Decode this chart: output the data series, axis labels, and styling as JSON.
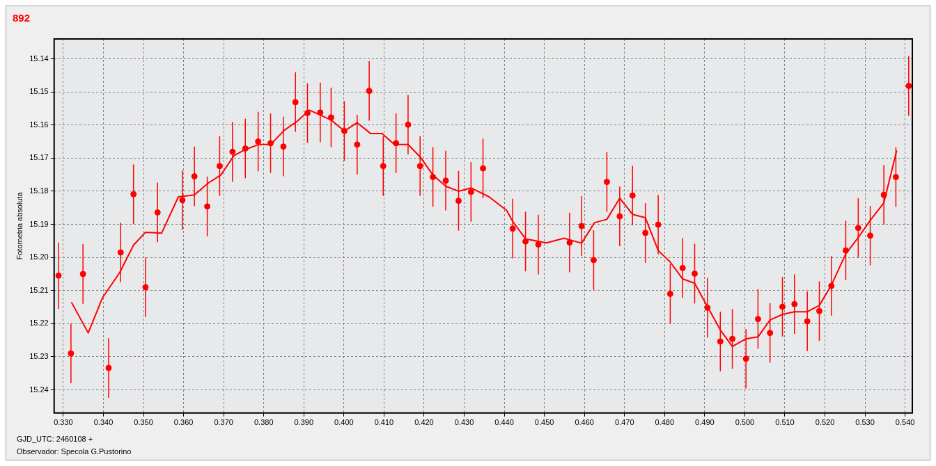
{
  "chart_data": {
    "type": "scatter",
    "title": "892",
    "ylabel": "Fotometria absoluta",
    "annotations": [
      "GJD_UTC: 2460108 +",
      "Observador: Specola G.Pustorino"
    ],
    "xlim": [
      0.3277,
      0.5418
    ],
    "ylim": [
      15.247,
      15.134
    ],
    "xticks": [
      {
        "value": 0.33,
        "label": "0.330"
      },
      {
        "value": 0.34,
        "label": "0.340"
      },
      {
        "value": 0.35,
        "label": "0.350"
      },
      {
        "value": 0.36,
        "label": "0.360"
      },
      {
        "value": 0.37,
        "label": "0.370"
      },
      {
        "value": 0.38,
        "label": "0.380"
      },
      {
        "value": 0.39,
        "label": "0.390"
      },
      {
        "value": 0.4,
        "label": "0.400"
      },
      {
        "value": 0.41,
        "label": "0.410"
      },
      {
        "value": 0.42,
        "label": "0.420"
      },
      {
        "value": 0.43,
        "label": "0.430"
      },
      {
        "value": 0.44,
        "label": "0.440"
      },
      {
        "value": 0.45,
        "label": "0.450"
      },
      {
        "value": 0.46,
        "label": "0.460"
      },
      {
        "value": 0.47,
        "label": "0.470"
      },
      {
        "value": 0.48,
        "label": "0.480"
      },
      {
        "value": 0.49,
        "label": "0.490"
      },
      {
        "value": 0.5,
        "label": "0.500"
      },
      {
        "value": 0.51,
        "label": "0.510"
      },
      {
        "value": 0.52,
        "label": "0.520"
      },
      {
        "value": 0.53,
        "label": "0.530"
      },
      {
        "value": 0.54,
        "label": "0.540"
      }
    ],
    "yticks": [
      {
        "value": 15.14,
        "label": "15.14"
      },
      {
        "value": 15.15,
        "label": "15.15"
      },
      {
        "value": 15.16,
        "label": "15.16"
      },
      {
        "value": 15.17,
        "label": "15.17"
      },
      {
        "value": 15.18,
        "label": "15.18"
      },
      {
        "value": 15.19,
        "label": "15.19"
      },
      {
        "value": 15.2,
        "label": "15.20"
      },
      {
        "value": 15.21,
        "label": "15.21"
      },
      {
        "value": 15.22,
        "label": "15.22"
      },
      {
        "value": 15.23,
        "label": "15.23"
      },
      {
        "value": 15.24,
        "label": "15.24"
      }
    ],
    "grid": true,
    "marker": "circle",
    "series": [
      {
        "color": "#ff0000",
        "x": [
          0.3288,
          0.3319,
          0.3349,
          0.3413,
          0.3443,
          0.3475,
          0.3505,
          0.3535,
          0.3597,
          0.3627,
          0.3659,
          0.369,
          0.3722,
          0.3754,
          0.3786,
          0.3817,
          0.3849,
          0.3879,
          0.3909,
          0.3941,
          0.3968,
          0.4001,
          0.4033,
          0.4063,
          0.4098,
          0.413,
          0.416,
          0.419,
          0.4222,
          0.4254,
          0.4286,
          0.4317,
          0.4347,
          0.4421,
          0.4453,
          0.4485,
          0.4563,
          0.4593,
          0.4623,
          0.4656,
          0.4688,
          0.472,
          0.4752,
          0.4784,
          0.4814,
          0.4845,
          0.4875,
          0.4907,
          0.4939,
          0.4969,
          0.5003,
          0.5033,
          0.5063,
          0.5094,
          0.5124,
          0.5156,
          0.5186,
          0.5216,
          0.5252,
          0.5283,
          0.5313,
          0.5347,
          0.5377,
          0.5409
        ],
        "values": [
          15.2055,
          15.229,
          15.205,
          15.2334,
          15.1985,
          15.1809,
          15.209,
          15.1864,
          15.1827,
          15.1755,
          15.1846,
          15.1724,
          15.1681,
          15.1671,
          15.165,
          15.1655,
          15.1665,
          15.1531,
          15.1564,
          15.1562,
          15.1577,
          15.1618,
          15.1659,
          15.1497,
          15.1724,
          15.1655,
          15.1599,
          15.1724,
          15.1757,
          15.1768,
          15.1829,
          15.1802,
          15.1731,
          15.1913,
          15.1952,
          15.1961,
          15.1955,
          15.1905,
          15.2008,
          15.1772,
          15.1876,
          15.1813,
          15.1926,
          15.1901,
          15.211,
          15.2032,
          15.2049,
          15.2152,
          15.2254,
          15.2246,
          15.2306,
          15.2186,
          15.2228,
          15.2149,
          15.2141,
          15.2193,
          15.2162,
          15.2086,
          15.1979,
          15.1911,
          15.1934,
          15.1811,
          15.1757,
          15.1482
        ],
        "errors": [
          0.01,
          0.009,
          0.009,
          0.009,
          0.009,
          0.009,
          0.009,
          0.009,
          0.009,
          0.009,
          0.009,
          0.009,
          0.009,
          0.009,
          0.009,
          0.009,
          0.009,
          0.009,
          0.009,
          0.009,
          0.009,
          0.009,
          0.009,
          0.009,
          0.009,
          0.009,
          0.009,
          0.009,
          0.009,
          0.009,
          0.009,
          0.009,
          0.009,
          0.009,
          0.009,
          0.009,
          0.009,
          0.009,
          0.009,
          0.009,
          0.009,
          0.009,
          0.009,
          0.009,
          0.009,
          0.009,
          0.009,
          0.009,
          0.009,
          0.009,
          0.009,
          0.009,
          0.009,
          0.009,
          0.009,
          0.009,
          0.009,
          0.009,
          0.009,
          0.009,
          0.009,
          0.009,
          0.009,
          0.009
        ]
      },
      {
        "type": "line",
        "color": "#ff0000",
        "marker": "none",
        "x": [
          0.332,
          0.3362,
          0.3398,
          0.3441,
          0.3475,
          0.3505,
          0.3545,
          0.3587,
          0.3627,
          0.3662,
          0.3693,
          0.3726,
          0.3756,
          0.3787,
          0.3817,
          0.3851,
          0.3883,
          0.3914,
          0.3941,
          0.3968,
          0.4001,
          0.4033,
          0.4067,
          0.4095,
          0.4126,
          0.416,
          0.419,
          0.4222,
          0.4254,
          0.4286,
          0.4317,
          0.4362,
          0.4406,
          0.4421,
          0.4453,
          0.4505,
          0.4549,
          0.4593,
          0.4625,
          0.4656,
          0.4688,
          0.472,
          0.4752,
          0.4784,
          0.4814,
          0.4845,
          0.4875,
          0.4907,
          0.4939,
          0.4969,
          0.5003,
          0.5033,
          0.5063,
          0.5094,
          0.5124,
          0.5156,
          0.5186,
          0.5216,
          0.5252,
          0.5283,
          0.5313,
          0.5347,
          0.5379
        ],
        "values": [
          15.2135,
          15.2228,
          15.2121,
          15.2045,
          15.1963,
          15.1924,
          15.1927,
          15.1817,
          15.1811,
          15.1775,
          15.1751,
          15.1692,
          15.1673,
          15.1659,
          15.1659,
          15.1616,
          15.1589,
          15.1555,
          15.157,
          15.1585,
          15.1618,
          15.1593,
          15.1626,
          15.1626,
          15.1659,
          15.1659,
          15.1696,
          15.1751,
          15.1785,
          15.18,
          15.179,
          15.1817,
          15.1858,
          15.1891,
          15.1944,
          15.1956,
          15.1942,
          15.1957,
          15.1895,
          15.1885,
          15.1821,
          15.187,
          15.188,
          15.1979,
          15.2014,
          15.2065,
          15.2078,
          15.2149,
          15.2219,
          15.2269,
          15.2246,
          15.224,
          15.2189,
          15.2172,
          15.2164,
          15.2164,
          15.2145,
          15.2084,
          15.1989,
          15.194,
          15.1888,
          15.1835,
          15.1677
        ]
      }
    ]
  }
}
